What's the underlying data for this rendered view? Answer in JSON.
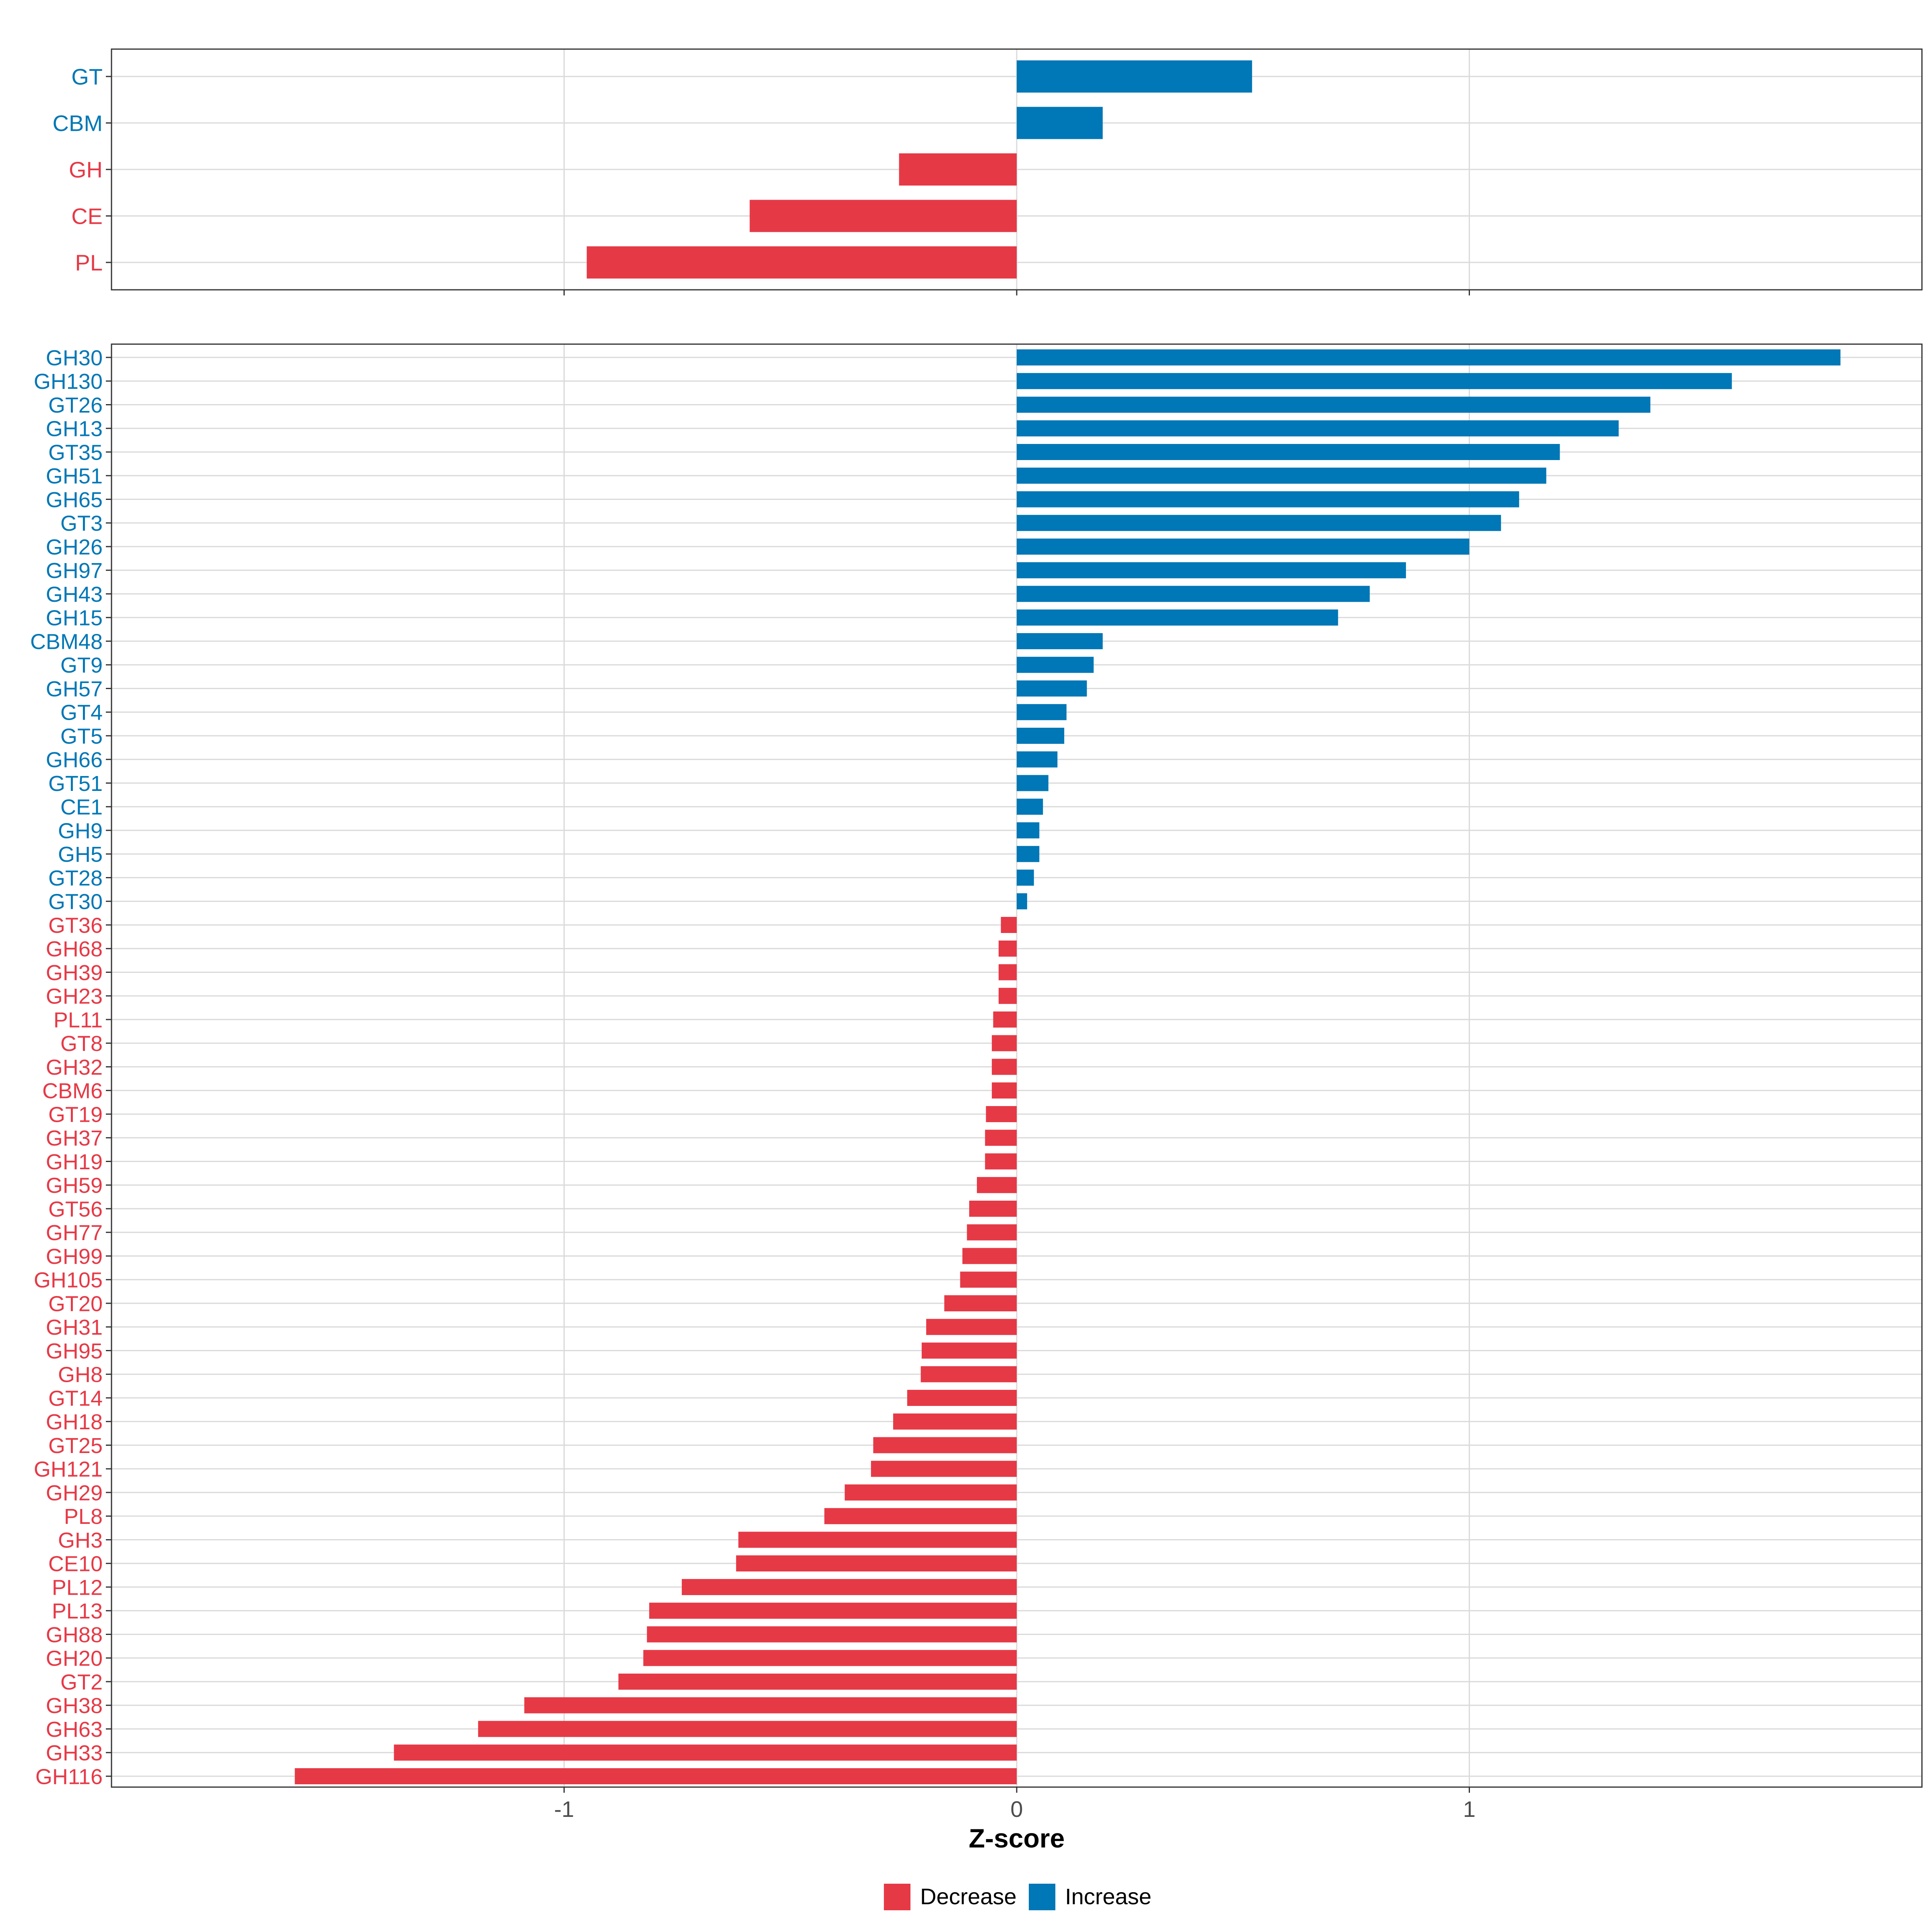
{
  "colors": {
    "decrease": "#E63946",
    "increase": "#0077B6",
    "grid": "#DADADA",
    "axis": "#333333",
    "tick_text": "#4D4D4D"
  },
  "chart_data": [
    {
      "type": "bar",
      "orientation": "horizontal",
      "panel": "top",
      "categories": [
        "GT",
        "CBM",
        "GH",
        "CE",
        "PL"
      ],
      "values": [
        0.52,
        0.19,
        -0.26,
        -0.59,
        -0.95
      ],
      "xlim": [
        -2.0,
        2.0
      ],
      "xticks": [
        -1,
        0,
        1
      ],
      "xtick_labels": []
    },
    {
      "type": "bar",
      "orientation": "horizontal",
      "panel": "bottom",
      "categories": [
        "GH30",
        "GH130",
        "GT26",
        "GH13",
        "GT35",
        "GH51",
        "GH65",
        "GT3",
        "GH26",
        "GH97",
        "GH43",
        "GH15",
        "CBM48",
        "GT9",
        "GH57",
        "GT4",
        "GT5",
        "GH66",
        "GT51",
        "CE1",
        "GH9",
        "GH5",
        "GT28",
        "GT30",
        "GT36",
        "GH68",
        "GH39",
        "GH23",
        "PL11",
        "GT8",
        "GH32",
        "CBM6",
        "GT19",
        "GH37",
        "GH19",
        "GH59",
        "GT56",
        "GH77",
        "GH99",
        "GH105",
        "GT20",
        "GH31",
        "GH95",
        "GH8",
        "GT14",
        "GH18",
        "GT25",
        "GH121",
        "GH29",
        "PL8",
        "GH3",
        "CE10",
        "PL12",
        "PL13",
        "GH88",
        "GH20",
        "GT2",
        "GH38",
        "GH63",
        "GH33",
        "GH116"
      ],
      "values": [
        1.82,
        1.58,
        1.4,
        1.33,
        1.2,
        1.17,
        1.11,
        1.07,
        1.0,
        0.86,
        0.78,
        0.71,
        0.19,
        0.17,
        0.155,
        0.11,
        0.105,
        0.09,
        0.07,
        0.058,
        0.05,
        0.05,
        0.038,
        0.023,
        -0.035,
        -0.04,
        -0.04,
        -0.04,
        -0.052,
        -0.055,
        -0.055,
        -0.055,
        -0.068,
        -0.07,
        -0.07,
        -0.088,
        -0.105,
        -0.11,
        -0.12,
        -0.125,
        -0.16,
        -0.2,
        -0.21,
        -0.212,
        -0.242,
        -0.273,
        -0.317,
        -0.322,
        -0.38,
        -0.425,
        -0.615,
        -0.62,
        -0.74,
        -0.812,
        -0.817,
        -0.825,
        -0.88,
        -1.088,
        -1.19,
        -1.376,
        -1.595
      ],
      "xlim": [
        -2.0,
        2.0
      ],
      "xticks": [
        -1,
        0,
        1
      ],
      "xtick_labels": [
        "-1",
        "0",
        "1"
      ],
      "xlabel": "Z-score"
    }
  ],
  "legend": {
    "items": [
      {
        "label": "Decrease",
        "color_key": "decrease"
      },
      {
        "label": "Increase",
        "color_key": "increase"
      }
    ]
  }
}
